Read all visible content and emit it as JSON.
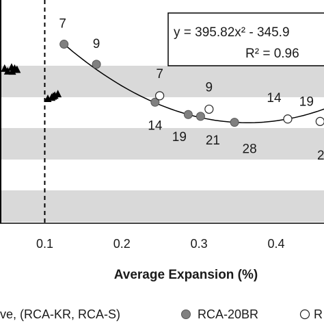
{
  "chart_data": {
    "type": "scatter",
    "xlabel": "Average Expansion (%)",
    "x_ticks": [
      "0.1",
      "0.2",
      "0.3",
      "0.4"
    ],
    "x_tick_values": [
      0.1,
      0.2,
      0.3,
      0.4
    ],
    "xlim": [
      0.042,
      0.462
    ],
    "ylim": [
      0,
      1
    ],
    "grid": "horizontal grey bands",
    "vertical_reference_line_x": 0.1,
    "equation": "y = 395.82x² - 345.9",
    "r_squared": "R² = 0.96",
    "series": [
      {
        "name": "RCA-20BR",
        "marker": "grey-circle",
        "color": "#808080",
        "points": [
          {
            "x": 0.125,
            "y": 0.802,
            "label": "7"
          },
          {
            "x": 0.167,
            "y": 0.712,
            "label": "9"
          },
          {
            "x": 0.243,
            "y": 0.542,
            "label": "14"
          },
          {
            "x": 0.286,
            "y": 0.487,
            "label": "19"
          },
          {
            "x": 0.302,
            "y": 0.479,
            "label": "21"
          },
          {
            "x": 0.346,
            "y": 0.452,
            "label": "28"
          }
        ]
      },
      {
        "name": "",
        "marker": "open-circle",
        "color": "#ffffff",
        "points": [
          {
            "x": 0.249,
            "y": 0.571,
            "label": "7"
          },
          {
            "x": 0.313,
            "y": 0.511,
            "label": "9"
          },
          {
            "x": 0.415,
            "y": 0.467,
            "label": "14"
          },
          {
            "x": 0.457,
            "y": 0.456,
            "label": "19"
          }
        ]
      },
      {
        "name": "",
        "marker": "black-triangle",
        "color": "#000000",
        "points": [
          {
            "x": 0.048,
            "y": 0.695
          },
          {
            "x": 0.052,
            "y": 0.683
          },
          {
            "x": 0.058,
            "y": 0.682
          },
          {
            "x": 0.064,
            "y": 0.69
          },
          {
            "x": 0.061,
            "y": 0.695
          },
          {
            "x": 0.057,
            "y": 0.7
          },
          {
            "x": 0.104,
            "y": 0.56
          },
          {
            "x": 0.109,
            "y": 0.565
          },
          {
            "x": 0.113,
            "y": 0.574
          },
          {
            "x": 0.117,
            "y": 0.581
          },
          {
            "x": 0.111,
            "y": 0.57
          }
        ]
      }
    ],
    "partial_labels": [
      "2"
    ],
    "trendline": {
      "x_start": 0.125,
      "x_end": 0.47
    },
    "legend_texts": [
      "ve, (RCA-KR, RCA-S)",
      "RCA-20BR",
      "R"
    ]
  },
  "colors": {
    "band": "#d9d9d9",
    "axis": "#000000",
    "text": "#1a1a1a",
    "filled_marker": "#808080"
  }
}
